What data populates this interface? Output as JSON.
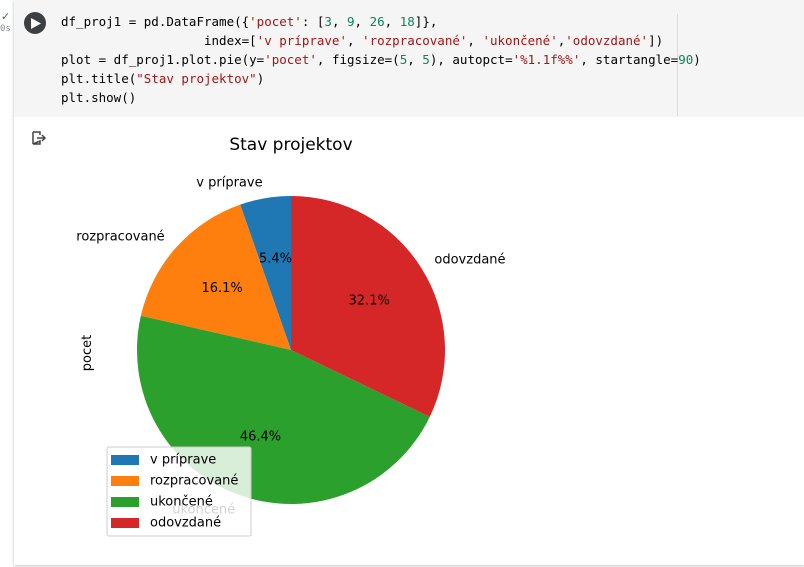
{
  "exec": {
    "check": "✓",
    "time": "0s"
  },
  "code": {
    "line1": {
      "a": "df_proj1 = pd.DataFrame({",
      "s1": "'pocet'",
      "b": ": [",
      "n1": "3",
      "c": ", ",
      "n2": "9",
      "d": ", ",
      "n3": "26",
      "e": ", ",
      "n4": "18",
      "f": "]},"
    },
    "line2": {
      "a": "                   index=[",
      "s1": "'v príprave'",
      "b": ", ",
      "s2": "'rozpracované'",
      "c": ", ",
      "s3": "'ukončené'",
      "d": ",",
      "s4": "'odovzdané'",
      "e": "])"
    },
    "line3": {
      "a": "plot = df_proj1.plot.pie(y=",
      "s1": "'pocet'",
      "b": ", figsize=(",
      "n1": "5",
      "c": ", ",
      "n2": "5",
      "d": "), autopct=",
      "s2": "'%1.1f%%'",
      "e": ", startangle=",
      "n3": "90",
      "f": ")"
    },
    "line4": {
      "a": "plt.title(",
      "s1": "\"Stav projektov\"",
      "b": ")"
    },
    "line5": {
      "a": "plt.show()"
    }
  },
  "chart_data": {
    "type": "pie",
    "title": "Stav projektov",
    "ylabel": "pocet",
    "startangle": 90,
    "categories": [
      "v príprave",
      "rozpracované",
      "ukončené",
      "odovzdané"
    ],
    "values": [
      3,
      9,
      26,
      18
    ],
    "percent_labels": [
      "5.4%",
      "16.1%",
      "46.4%",
      "32.1%"
    ],
    "colors": [
      "#1f77b4",
      "#ff7f0e",
      "#2ca02c",
      "#d62728"
    ],
    "legend": {
      "placement": "lower-left",
      "entries": [
        "v príprave",
        "rozpracované",
        "ukončené",
        "odovzdané"
      ]
    }
  }
}
